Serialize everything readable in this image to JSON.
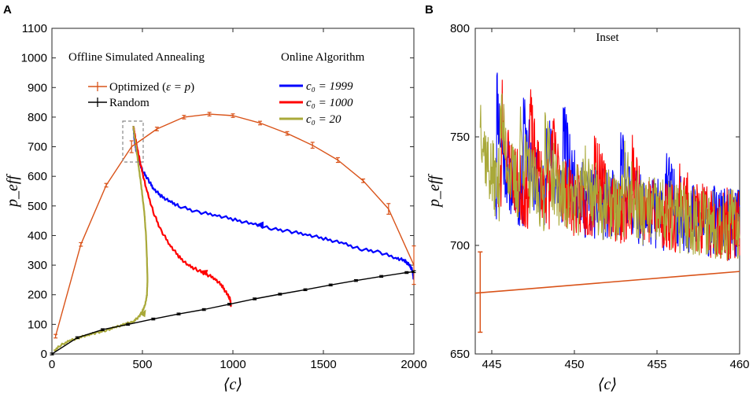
{
  "chart_data": [
    {
      "panel": "A",
      "type": "line",
      "xlabel": "⟨c⟩",
      "ylabel": "p_eff",
      "xlim": [
        0,
        2000
      ],
      "ylim": [
        0,
        1100
      ],
      "xticks": [
        0,
        500,
        1000,
        1500,
        2000
      ],
      "yticks": [
        0,
        100,
        200,
        300,
        400,
        500,
        600,
        700,
        800,
        900,
        1000,
        1100
      ],
      "annotations": {
        "left_title": "Offline Simulated Annealing",
        "right_title": "Online Algorithm"
      },
      "series": [
        {
          "name": "Optimized (ε = p)",
          "legend_prefix": "Optimized (",
          "legend_math": "ε = p",
          "legend_suffix": ")",
          "color": "#d95319",
          "x": [
            20,
            160,
            300,
            440,
            580,
            730,
            870,
            1000,
            1150,
            1300,
            1440,
            1580,
            1720,
            1860,
            2000
          ],
          "y": [
            60,
            370,
            570,
            700,
            760,
            800,
            810,
            805,
            780,
            745,
            705,
            655,
            585,
            490,
            300
          ],
          "err": [
            6,
            6,
            6,
            20,
            6,
            6,
            6,
            6,
            6,
            6,
            10,
            8,
            6,
            18,
            65
          ]
        },
        {
          "name": "Random",
          "color": "#000000",
          "x": [
            0,
            140,
            280,
            420,
            560,
            700,
            840,
            980,
            1120,
            1260,
            1400,
            1540,
            1680,
            1820,
            1960,
            2000
          ],
          "y": [
            0,
            55,
            82,
            100,
            118,
            135,
            150,
            168,
            186,
            202,
            217,
            233,
            248,
            262,
            275,
            278
          ],
          "err": [
            3,
            3,
            3,
            3,
            3,
            3,
            3,
            3,
            3,
            3,
            3,
            3,
            3,
            3,
            3,
            3
          ]
        },
        {
          "name": "c0 = 1999",
          "legend_math": "c₀ = 1999",
          "color": "#0000ff",
          "x": [
            2000,
            1990,
            1975,
            1950,
            1900,
            1800,
            1700,
            1600,
            1500,
            1400,
            1300,
            1200,
            1100,
            1000,
            900,
            800,
            700,
            650,
            600,
            560,
            530,
            500,
            480,
            465,
            455,
            450
          ],
          "y": [
            250,
            285,
            300,
            315,
            325,
            345,
            355,
            375,
            390,
            405,
            415,
            425,
            440,
            455,
            470,
            480,
            500,
            515,
            535,
            560,
            590,
            620,
            655,
            690,
            730,
            770
          ]
        },
        {
          "name": "c0 = 1000",
          "legend_math": "c₀ = 1000",
          "color": "#ff0000",
          "x": [
            990,
            985,
            970,
            940,
            900,
            850,
            800,
            750,
            700,
            650,
            600,
            560,
            520,
            490,
            470,
            458,
            450
          ],
          "y": [
            160,
            185,
            200,
            230,
            255,
            270,
            285,
            300,
            330,
            370,
            420,
            480,
            560,
            640,
            700,
            740,
            770
          ]
        },
        {
          "name": "c0 = 20",
          "legend_math": "c₀ = 20",
          "color": "#a9a93a",
          "x": [
            10,
            50,
            100,
            150,
            200,
            250,
            300,
            350,
            400,
            450,
            480,
            500,
            515,
            525,
            528,
            525,
            520,
            510,
            495,
            480,
            465,
            455,
            450
          ],
          "y": [
            10,
            30,
            45,
            55,
            65,
            72,
            80,
            90,
            100,
            110,
            125,
            145,
            165,
            200,
            250,
            320,
            400,
            480,
            560,
            630,
            700,
            740,
            770
          ]
        }
      ]
    },
    {
      "panel": "B",
      "type": "line",
      "title": "Inset",
      "xlabel": "⟨c⟩",
      "ylabel": "p_eff",
      "xlim": [
        444,
        460
      ],
      "ylim": [
        650,
        800
      ],
      "xticks": [
        445,
        450,
        455,
        460
      ],
      "yticks": [
        650,
        700,
        750,
        800
      ],
      "series": [
        {
          "name": "c0 = 1999",
          "color": "#0000ff",
          "note": "noisy, decreasing from ~775 to ~700"
        },
        {
          "name": "c0 = 1000",
          "color": "#ff0000",
          "note": "noisy, decreasing from ~770 to ~700"
        },
        {
          "name": "c0 = 20",
          "color": "#a9a93a",
          "note": "noisy, decreasing from ~765 to ~700"
        },
        {
          "name": "Optimized (ε = p)",
          "color": "#d95319",
          "x": [
            444,
            460
          ],
          "y": [
            678,
            688
          ],
          "errbar": {
            "x": 444.3,
            "low": 660,
            "high": 697
          }
        }
      ]
    }
  ],
  "labels": {
    "panel_a": "A",
    "panel_b": "B"
  }
}
